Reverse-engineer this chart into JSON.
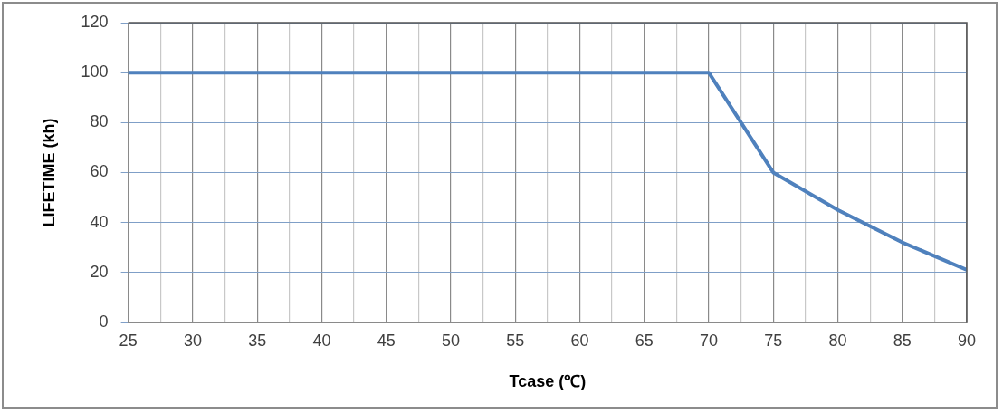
{
  "chart_data": {
    "type": "line",
    "xlabel": "Tcase (℃)",
    "ylabel": "LIFETIME (kh)",
    "x": [
      25,
      70,
      75,
      80,
      85,
      90
    ],
    "series": [
      {
        "color": "#4f81bd",
        "values": [
          100,
          100,
          60,
          45,
          32,
          21
        ]
      }
    ],
    "xlim": [
      25,
      90
    ],
    "xticks": [
      25,
      {
        "value": 27.5,
        "label": null
      },
      30,
      {
        "value": 32.5,
        "label": null
      },
      35,
      {
        "value": 37.5,
        "label": null
      },
      40,
      {
        "value": 42.5,
        "label": null
      },
      45,
      {
        "value": 47.5,
        "label": null
      },
      50,
      {
        "value": 52.5,
        "label": null
      },
      55,
      {
        "value": 57.5,
        "label": null
      },
      60,
      {
        "value": 62.5,
        "label": null
      },
      65,
      {
        "value": 67.5,
        "label": null
      },
      70,
      {
        "value": 72.5,
        "label": null
      },
      75,
      {
        "value": 77.5,
        "label": null
      },
      80,
      {
        "value": 82.5,
        "label": null
      },
      85,
      {
        "value": 87.5,
        "label": null
      },
      90
    ],
    "ylim": [
      0,
      120
    ],
    "yticks": [
      0,
      20,
      40,
      60,
      80,
      100,
      120
    ],
    "grid": true,
    "legend": false,
    "marker": "none",
    "line_style": "solid"
  }
}
